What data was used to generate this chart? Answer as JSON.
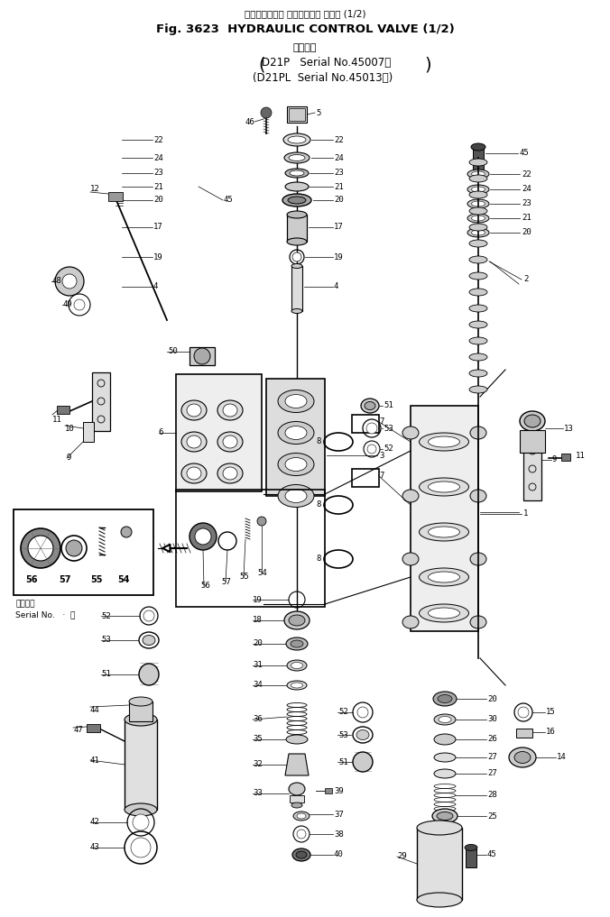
{
  "bg_color": "#ffffff",
  "title_jp": "ハイドロリック コントロール バルブ (1/2)",
  "title_en": "Fig. 3623  HYDRAULIC CONTROL VALVE (1/2)",
  "sub_kanji": "適用号機",
  "sub1": "D21P   Serial No.45007～",
  "sub2": "(D21PL  Serial No.45013～)",
  "inset_serial1": "適用号機",
  "inset_serial2": "Serial No.   ·  ～"
}
